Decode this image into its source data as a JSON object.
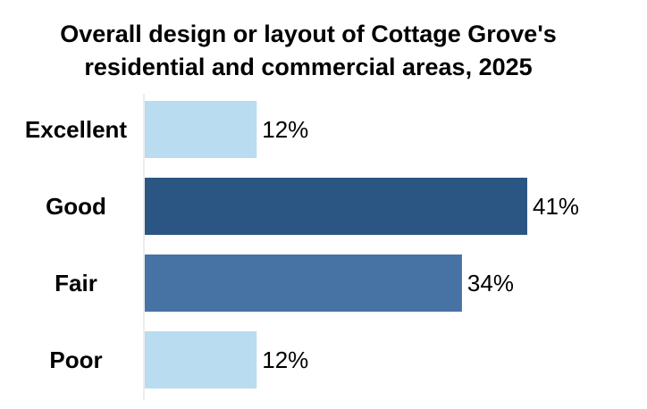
{
  "chart_data": {
    "type": "bar",
    "orientation": "horizontal",
    "title": "Overall design or layout of Cottage Grove's residential and commercial areas, 2025",
    "title_lines": [
      "Overall design or layout of Cottage Grove's",
      "residential and commercial areas, 2025"
    ],
    "categories": [
      "Excellent",
      "Good",
      "Fair",
      "Poor"
    ],
    "values": [
      12,
      41,
      34,
      12
    ],
    "value_labels": [
      "12%",
      "41%",
      "34%",
      "12%"
    ],
    "bar_colors": [
      "#b9dcf0",
      "#2b5683",
      "#4673a4",
      "#b9dcf0"
    ],
    "xlim": [
      0,
      41
    ],
    "grid": false,
    "legend": "none",
    "xlabel": "",
    "ylabel": ""
  }
}
